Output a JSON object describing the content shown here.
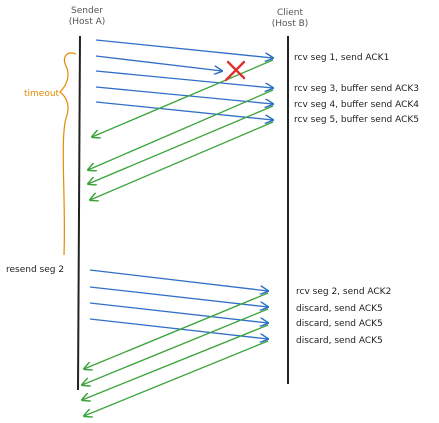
{
  "sender": {
    "title": "Sender",
    "subtitle": "(Host A)"
  },
  "client": {
    "title": "Client",
    "subtitle": "(Host B)"
  },
  "timeout_label": "timeout",
  "resend_label": "resend seg 2",
  "client_events_phase1": [
    "rcv seg 1, send ACK1",
    "rcv seg 3, buffer send ACK3",
    "rcv seg 4, buffer send ACK4",
    "rcv seg 5, buffer send ACK5"
  ],
  "client_events_phase2": [
    "rcv seg 2, send ACK2",
    "discard, send ACK5",
    "discard, send ACK5",
    "discard, send ACK5"
  ],
  "colors": {
    "data_segment": "#2f6fc7",
    "ack": "#3aa33a",
    "loss_mark": "#e03131",
    "timeout": "#e58a00",
    "timeline": "#222222"
  }
}
